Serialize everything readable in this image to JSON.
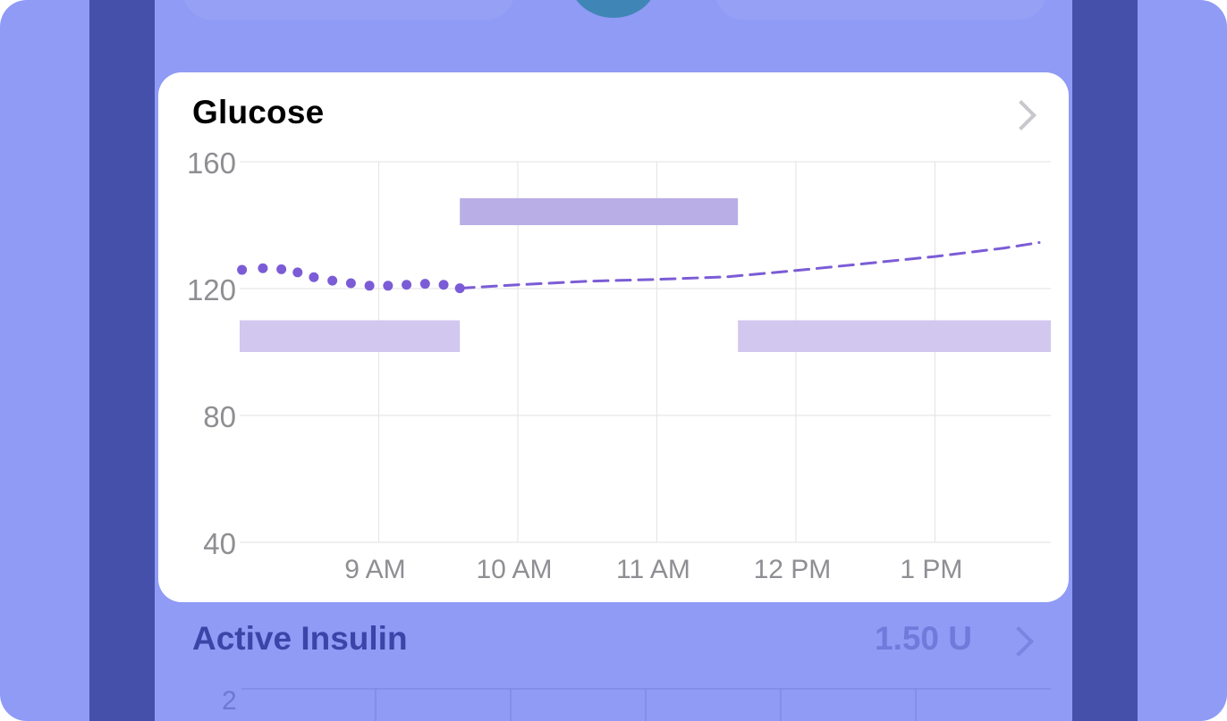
{
  "glucose_card": {
    "title": "Glucose",
    "chevron_icon": "chevron-right-icon"
  },
  "chart_data": {
    "type": "line",
    "title": "Glucose",
    "xlabel": "",
    "ylabel": "",
    "ylim": [
      40,
      160
    ],
    "xlim": [
      "8:00",
      "13:50"
    ],
    "y_ticks": [
      "160",
      "120",
      "80",
      "40"
    ],
    "x_ticks": [
      {
        "label": "9 AM",
        "time": "9:00"
      },
      {
        "label": "10 AM",
        "time": "10:00"
      },
      {
        "label": "11 AM",
        "time": "11:00"
      },
      {
        "label": "12 PM",
        "time": "12:00"
      },
      {
        "label": "1 PM",
        "time": "13:00"
      }
    ],
    "grid": true,
    "series": [
      {
        "style": "dotted",
        "color": "#7b5cd6",
        "points": [
          [
            "8:01",
            125.9
          ],
          [
            "8:10",
            126.4
          ],
          [
            "8:18",
            126.1
          ],
          [
            "8:25",
            125.1
          ],
          [
            "8:32",
            123.6
          ],
          [
            "8:40",
            122.5
          ],
          [
            "8:48",
            121.7
          ],
          [
            "8:56",
            120.9
          ],
          [
            "9:04",
            120.9
          ],
          [
            "9:12",
            121.2
          ],
          [
            "9:20",
            121.5
          ],
          [
            "9:28",
            121.2
          ],
          [
            "9:35",
            120.1
          ]
        ]
      },
      {
        "style": "dashed",
        "color": "#7b5cd6",
        "points": [
          [
            "9:35",
            120.1
          ],
          [
            "10:00",
            121.2
          ],
          [
            "10:30",
            122.3
          ],
          [
            "11:00",
            122.9
          ],
          [
            "11:30",
            123.7
          ],
          [
            "12:00",
            125.7
          ],
          [
            "12:30",
            127.9
          ],
          [
            "13:00",
            130.1
          ],
          [
            "13:30",
            132.8
          ],
          [
            "13:45",
            134.5
          ]
        ]
      }
    ],
    "target_ranges": [
      {
        "start": "8:00",
        "end": "9:35",
        "low": 100,
        "high": 110,
        "color": "#d1c7ef"
      },
      {
        "start": "9:35",
        "end": "11:35",
        "low": 140,
        "high": 148.5,
        "color": "#baaee6"
      },
      {
        "start": "11:35",
        "end": "13:50",
        "low": 100,
        "high": 110,
        "color": "#d1c7ef"
      }
    ]
  },
  "active_insulin": {
    "title": "Active Insulin",
    "value": "1.50 U",
    "chevron_icon": "chevron-right-icon",
    "y_tick": "2"
  },
  "colors": {
    "background": "#8f9bf5",
    "side_bar": "#4550ab",
    "line": "#7b5cd6",
    "accent": "#3d44a8"
  }
}
